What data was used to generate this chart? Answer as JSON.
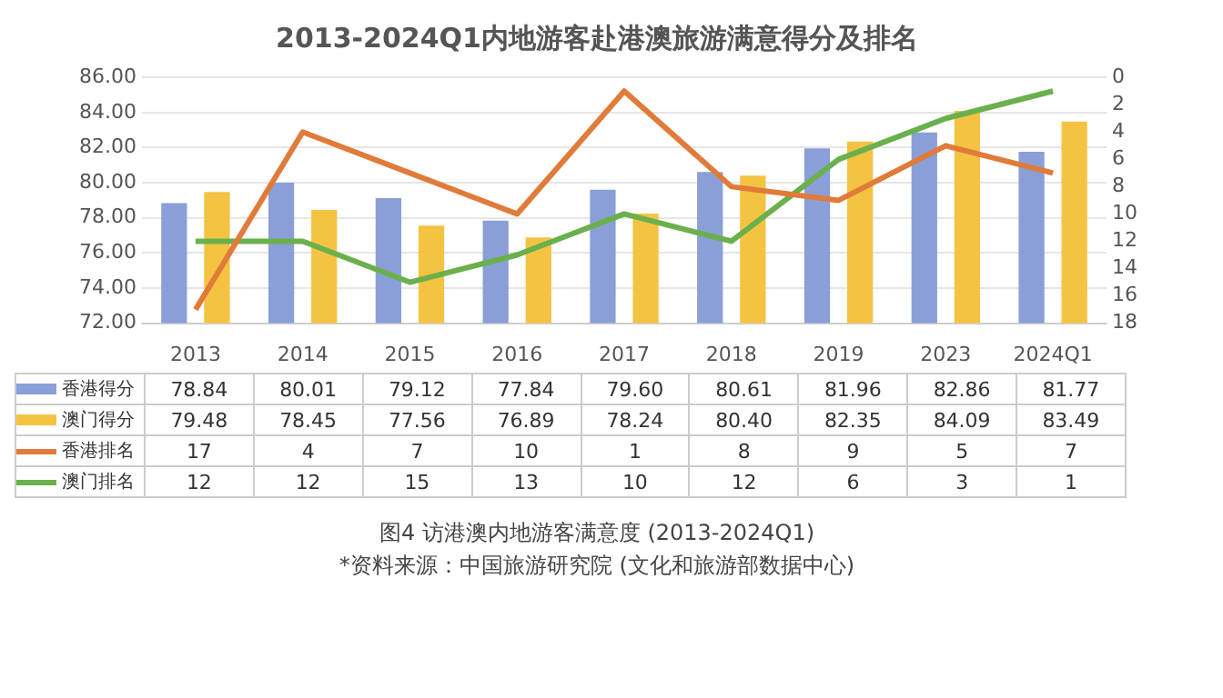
{
  "chart_data": {
    "type": "bar",
    "title": "2013-2024Q1内地游客赴港澳旅游满意得分及排名",
    "categories": [
      "2013",
      "2014",
      "2015",
      "2016",
      "2017",
      "2018",
      "2019",
      "2023",
      "2024Q1"
    ],
    "series": [
      {
        "name": "香港得分",
        "color": "#8a9fd8",
        "values": [
          78.84,
          80.01,
          79.12,
          77.84,
          79.6,
          80.61,
          81.96,
          82.86,
          81.77
        ],
        "value_labels": [
          "78.84",
          "80.01",
          "79.12",
          "77.84",
          "79.60",
          "80.61",
          "81.96",
          "82.86",
          "81.77"
        ]
      },
      {
        "name": "澳门得分",
        "color": "#f5c342",
        "values": [
          79.48,
          78.45,
          77.56,
          76.89,
          78.24,
          80.4,
          82.35,
          84.09,
          83.49
        ],
        "value_labels": [
          "79.48",
          "78.45",
          "77.56",
          "76.89",
          "78.24",
          "80.40",
          "82.35",
          "84.09",
          "83.49"
        ]
      },
      {
        "name": "香港排名",
        "type": "line",
        "axis": "y2",
        "color": "#e07b39",
        "values": [
          17,
          4,
          7,
          10,
          1,
          8,
          9,
          5,
          7
        ],
        "value_labels": [
          "17",
          "4",
          "7",
          "10",
          "1",
          "8",
          "9",
          "5",
          "7"
        ]
      },
      {
        "name": "澳门排名",
        "type": "line",
        "axis": "y2",
        "color": "#6ab04c",
        "values": [
          12,
          12,
          15,
          13,
          10,
          12,
          6,
          3,
          1
        ],
        "value_labels": [
          "12",
          "12",
          "15",
          "13",
          "10",
          "12",
          "6",
          "3",
          "1"
        ]
      }
    ],
    "ylim": [
      72,
      86
    ],
    "yticks": [
      {
        "value": 72,
        "label": "72.00"
      },
      {
        "value": 74,
        "label": "74.00"
      },
      {
        "value": 76,
        "label": "76.00"
      },
      {
        "value": 78,
        "label": "78.00"
      },
      {
        "value": 80,
        "label": "80.00"
      },
      {
        "value": 82,
        "label": "82.00"
      },
      {
        "value": 84,
        "label": "84.00"
      },
      {
        "value": 86,
        "label": "86.00"
      }
    ],
    "y2lim": [
      18,
      0
    ],
    "y2ticks": [
      0,
      2,
      4,
      6,
      8,
      10,
      12,
      14,
      16,
      18
    ],
    "grid": "y",
    "legend": "bottom",
    "marker": "none",
    "line_style": "solid",
    "annotations": [
      "图4 访港澳内地游客满意度 (2013-2024Q1)",
      "*资料来源：中国旅游研究院 (文化和旅游部数据中心)"
    ]
  }
}
